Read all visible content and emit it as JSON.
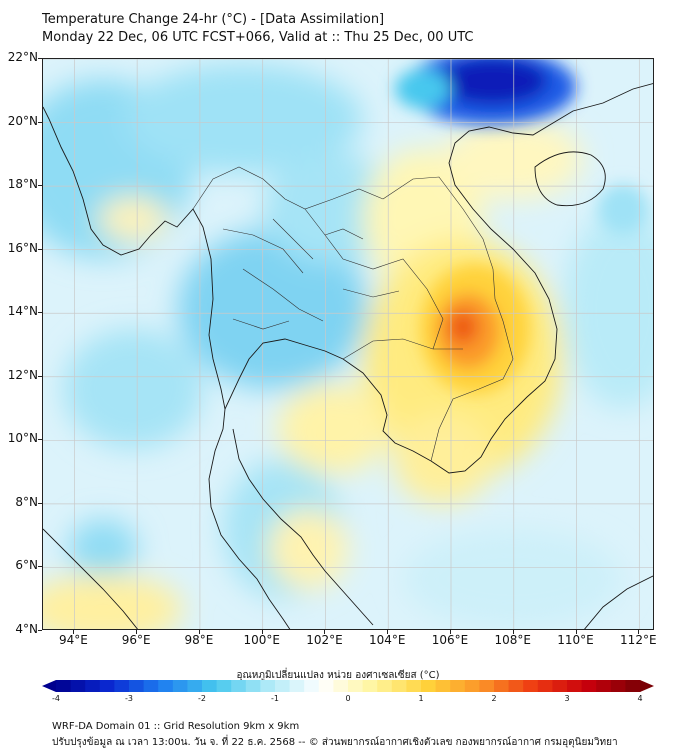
{
  "title": {
    "line1": "Temperature Change 24-hr (°C) - [Data Assimilation]",
    "line2": "Monday 22 Dec, 06 UTC FCST+066, Valid at :: Thu 25 Dec, 00 UTC"
  },
  "map": {
    "lat_range": [
      4,
      22
    ],
    "lon_range": [
      93,
      112.5
    ],
    "lat_labels": [
      "22°N",
      "20°N",
      "18°N",
      "16°N",
      "14°N",
      "12°N",
      "10°N",
      "8°N",
      "6°N",
      "4°N"
    ],
    "lon_labels": [
      "94°E",
      "96°E",
      "98°E",
      "100°E",
      "102°E",
      "104°E",
      "106°E",
      "108°E",
      "110°E",
      "112°E"
    ],
    "gridlines": "on",
    "field_summary": {
      "strong_cooling_max": -4,
      "strong_cooling_area": "northern Vietnam / Gulf of Tonkin",
      "strong_warming_max": 2.5,
      "strong_warming_area": "eastern Cambodia"
    }
  },
  "colorbar": {
    "label": "อุณหภูมิเปลี่ยนแปลง หน่วย องศาเซลเซียส (°C)",
    "ticks": [
      "-4",
      "-3",
      "-2",
      "-1",
      "0",
      "1",
      "2",
      "3",
      "4"
    ],
    "range": [
      -4,
      4
    ],
    "colors": [
      "#00008f",
      "#0a28d2",
      "#1e7ef0",
      "#46c8ee",
      "#aee9f7",
      "#ffffff",
      "#fff59c",
      "#ffd23a",
      "#fb9428",
      "#ee3a12",
      "#c8000c",
      "#7a0005"
    ]
  },
  "footer": {
    "line1": "WRF-DA Domain 01 :: Grid Resolution 9km x 9km",
    "line2": "ปรับปรุงข้อมูล ณ เวลา 13:00น. วัน จ. ที่ 22 ธ.ค. 2568 -- © ส่วนพยากรณ์อากาศเชิงตัวเลข กองพยากรณ์อากาศ กรมอุตุนิยมวิทยา"
  }
}
